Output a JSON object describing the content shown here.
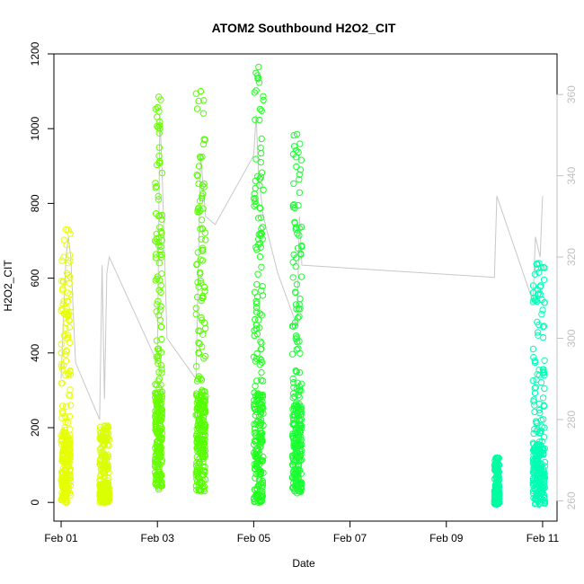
{
  "chart_data": {
    "type": "scatter",
    "title": "ATOM2 Southbound H2O2_CIT",
    "xlabel": "Date",
    "ylabel": "H2O2_CIT",
    "x_ticks": [
      "Feb 01",
      "Feb 03",
      "Feb 05",
      "Feb 07",
      "Feb 09",
      "Feb 11"
    ],
    "x_tick_days": [
      1,
      3,
      5,
      7,
      9,
      11
    ],
    "xlim_days": [
      0.85,
      11.3
    ],
    "ylim": [
      -50,
      1200
    ],
    "y_ticks": [
      0,
      200,
      400,
      600,
      800,
      1000,
      1200
    ],
    "y2_ticks": [
      260,
      280,
      300,
      320,
      340,
      360
    ],
    "y2lim": [
      255,
      370
    ],
    "grid": false,
    "legend": "none",
    "point_series": [
      {
        "day_from": 1.0,
        "day_to": 1.2,
        "ymin": 0,
        "ymax": 730,
        "color": "#e6ff00"
      },
      {
        "day_from": 1.8,
        "day_to": 2.0,
        "ymin": 0,
        "ymax": 205,
        "color": "#d9ff00"
      },
      {
        "day_from": 2.95,
        "day_to": 3.1,
        "ymin": 35,
        "ymax": 1085,
        "color": "#66ff00"
      },
      {
        "day_from": 3.8,
        "day_to": 4.0,
        "ymin": 30,
        "ymax": 1100,
        "color": "#55ff00"
      },
      {
        "day_from": 5.0,
        "day_to": 5.2,
        "ymin": 0,
        "ymax": 1165,
        "color": "#22ff22"
      },
      {
        "day_from": 5.8,
        "day_to": 6.0,
        "ymin": 25,
        "ymax": 985,
        "color": "#1aff33"
      },
      {
        "day_from": 10.0,
        "day_to": 10.1,
        "ymin": -5,
        "ymax": 120,
        "color": "#00ffa0"
      },
      {
        "day_from": 10.8,
        "day_to": 11.05,
        "ymin": -5,
        "ymax": 640,
        "color": "#00ffb3"
      }
    ],
    "flight_track": {
      "color": "#c8c8c8",
      "days": [
        1.0,
        1.1,
        1.15,
        1.2,
        1.3,
        1.8,
        1.85,
        1.9,
        1.95,
        2.0,
        3.0,
        3.05,
        3.1,
        3.2,
        3.8,
        3.9,
        4.0,
        4.2,
        5.0,
        5.05,
        5.1,
        5.2,
        5.5,
        5.9,
        5.95,
        6.0,
        10.0,
        10.05,
        10.8,
        10.85,
        10.95,
        11.0
      ],
      "alt": [
        290,
        320,
        325,
        320,
        294,
        280,
        318,
        285,
        316,
        320,
        294,
        355,
        340,
        300,
        290,
        345,
        330,
        328,
        345,
        355,
        340,
        330,
        316,
        303,
        330,
        318,
        315,
        335,
        309,
        325,
        320,
        335
      ]
    }
  }
}
